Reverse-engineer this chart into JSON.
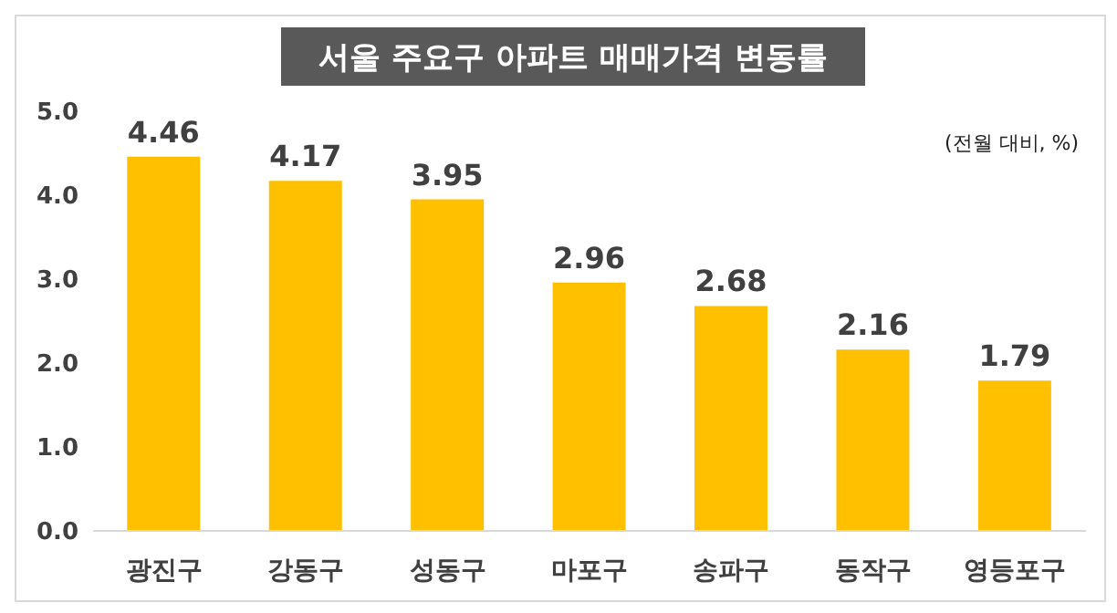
{
  "chart_data": {
    "type": "bar",
    "title": "서울 주요구 아파트 매매가격 변동률",
    "annotations": [
      "(전월 대비, %)"
    ],
    "categories": [
      "광진구",
      "강동구",
      "성동구",
      "마포구",
      "송파구",
      "동작구",
      "영등포구"
    ],
    "values": [
      4.46,
      4.17,
      3.95,
      2.96,
      2.68,
      2.16,
      1.79
    ],
    "color": "#ffc000",
    "ylim": [
      0,
      5
    ],
    "yticks": [
      {
        "value": 0,
        "label": "0.0"
      },
      {
        "value": 1,
        "label": "1.0"
      },
      {
        "value": 2,
        "label": "2.0"
      },
      {
        "value": 3,
        "label": "3.0"
      },
      {
        "value": 4,
        "label": "4.0"
      },
      {
        "value": 5,
        "label": "5.0"
      }
    ],
    "data_labels": true
  }
}
